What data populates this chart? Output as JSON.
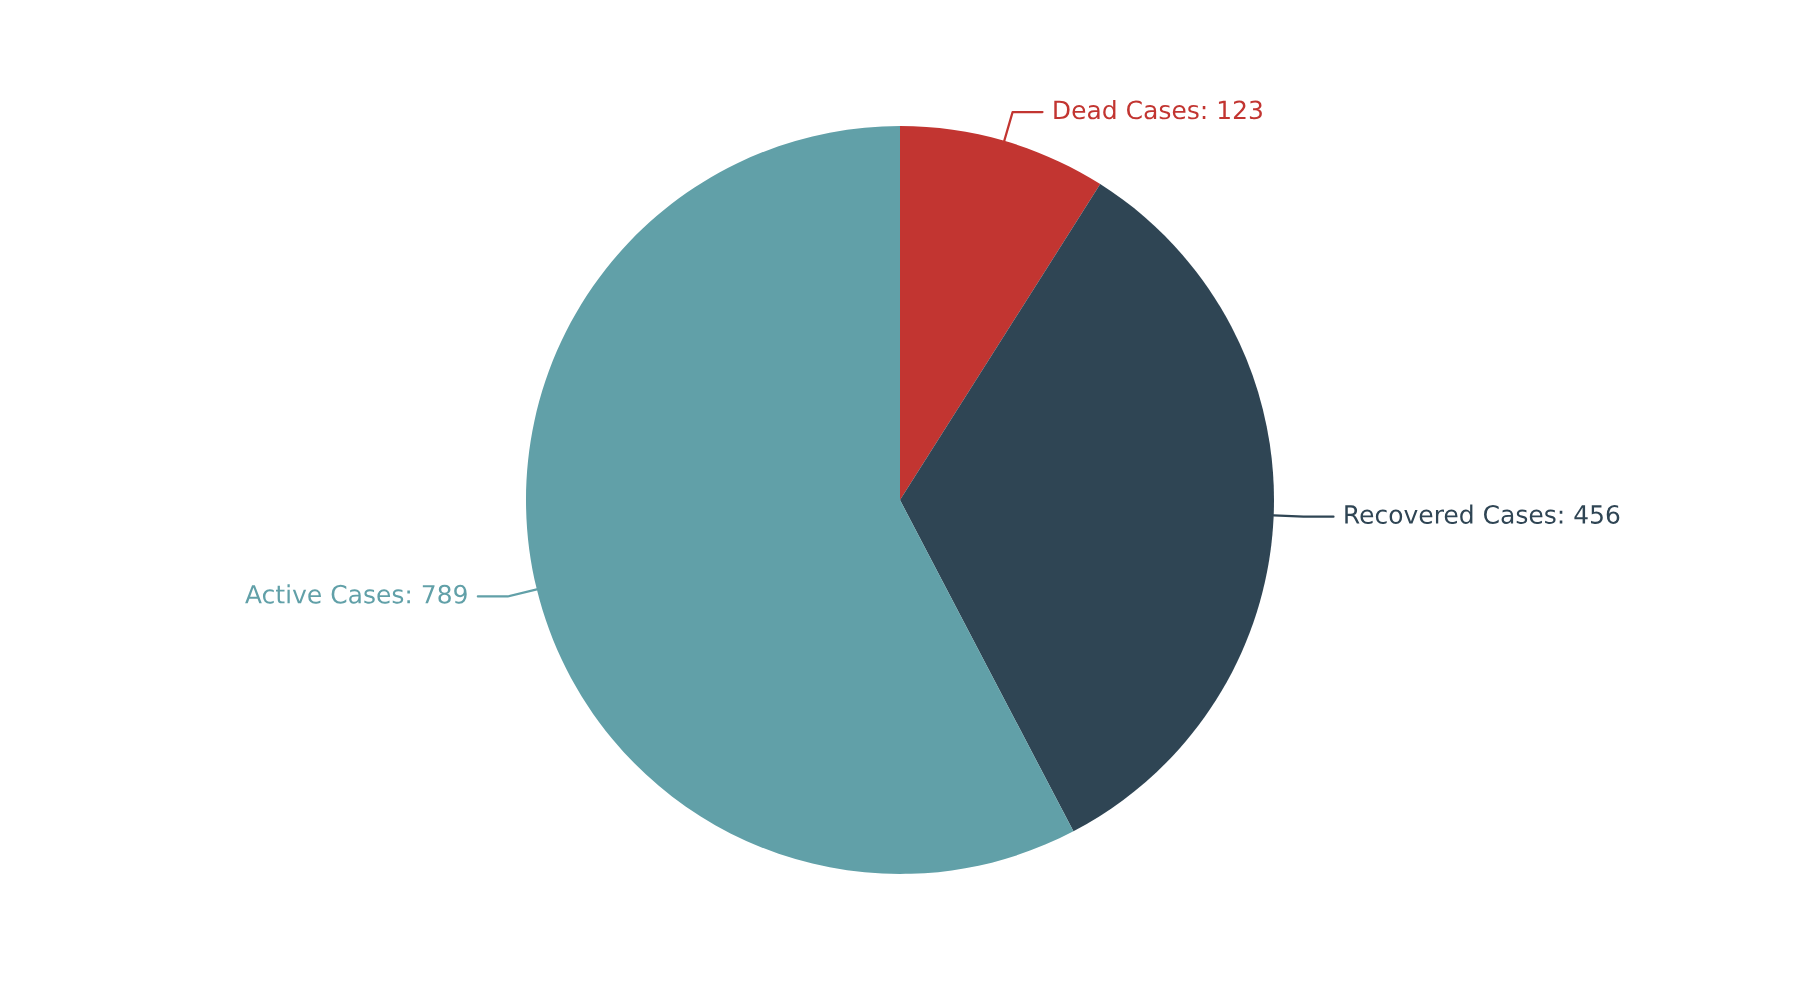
{
  "chart_data": {
    "type": "pie",
    "categories": [
      "Dead Cases: 123",
      "Recovered Cases: 456",
      "Active Cases: 789"
    ],
    "values": [
      123,
      456,
      789
    ],
    "colors": [
      "#c23531",
      "#2f4554",
      "#61a0a8"
    ],
    "legend": false
  }
}
